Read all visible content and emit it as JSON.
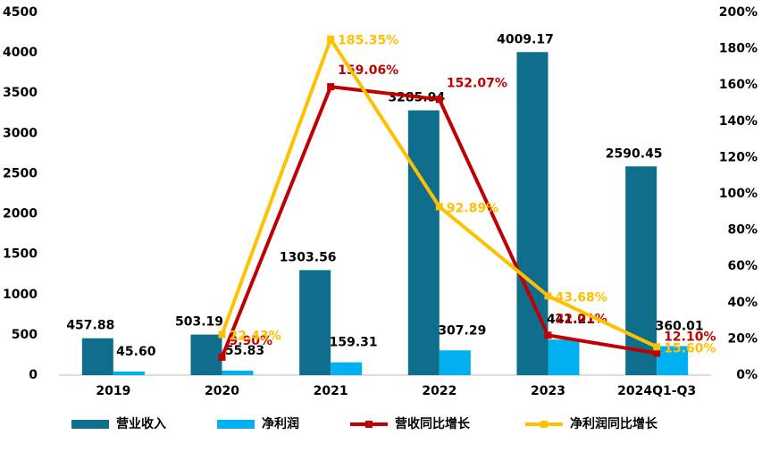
{
  "chart_data": {
    "type": "bar-line",
    "categories": [
      "2019",
      "2020",
      "2021",
      "2022",
      "2023",
      "2024Q1-Q3"
    ],
    "series": [
      {
        "name": "营业收入",
        "type": "bar",
        "color": "#0e6e8c",
        "values": [
          457.88,
          503.19,
          1303.56,
          3285.94,
          4009.17,
          2590.45
        ],
        "value_labels": [
          "457.88",
          "503.19",
          "1303.56",
          "3285.94",
          "4009.17",
          "2590.45"
        ]
      },
      {
        "name": "净利润",
        "type": "bar",
        "color": "#00b0f0",
        "values": [
          45.6,
          55.83,
          159.31,
          307.29,
          441.21,
          360.01
        ],
        "value_labels": [
          "45.60",
          "55.83",
          "159.31",
          "307.29",
          "441.21",
          "360.01"
        ]
      },
      {
        "name": "营收同比增长",
        "type": "line",
        "axis": "y2",
        "color": "#c00000",
        "values": [
          null,
          9.9,
          159.06,
          152.07,
          22.01,
          12.1
        ],
        "value_labels": [
          null,
          "9.90%",
          "159.06%",
          "152.07%",
          "22.01%",
          "12.10%"
        ]
      },
      {
        "name": "净利润同比增长",
        "type": "line",
        "axis": "y2",
        "color": "#ffc000",
        "values": [
          null,
          22.43,
          185.35,
          92.89,
          43.68,
          15.6
        ],
        "value_labels": [
          null,
          "22.43%",
          "185.35%",
          "92.89%",
          "43.68%",
          "15.60%"
        ]
      }
    ],
    "ylim": [
      0,
      4500
    ],
    "yticks": [
      0,
      500,
      1000,
      1500,
      2000,
      2500,
      3000,
      3500,
      4000,
      4500
    ],
    "y2lim": [
      0,
      200
    ],
    "y2ticks": [
      {
        "value": 0,
        "label": "0%"
      },
      {
        "value": 20,
        "label": "20%"
      },
      {
        "value": 40,
        "label": "40%"
      },
      {
        "value": 60,
        "label": "60%"
      },
      {
        "value": 80,
        "label": "80%"
      },
      {
        "value": 100,
        "label": "100%"
      },
      {
        "value": 120,
        "label": "120%"
      },
      {
        "value": 140,
        "label": "140%"
      },
      {
        "value": 160,
        "label": "160%"
      },
      {
        "value": 180,
        "label": "180%"
      },
      {
        "value": 200,
        "label": "200%"
      }
    ],
    "legend": "bottom"
  }
}
